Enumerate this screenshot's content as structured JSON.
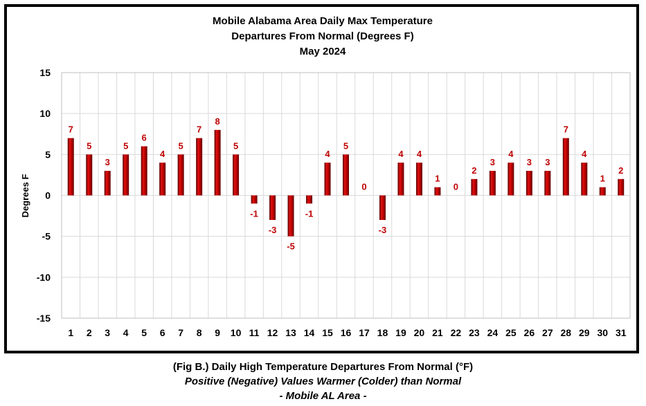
{
  "chart_data": {
    "type": "bar",
    "title": [
      "Mobile Alabama Area Daily Max Temperature",
      "Departures From Normal (Degrees F)",
      "May 2024"
    ],
    "xlabel": "",
    "ylabel": "Degrees F",
    "ylim": [
      -15,
      15
    ],
    "yticks": [
      15,
      10,
      5,
      0,
      -5,
      -10,
      -15
    ],
    "categories": [
      "1",
      "2",
      "3",
      "4",
      "5",
      "6",
      "7",
      "8",
      "9",
      "10",
      "11",
      "12",
      "13",
      "14",
      "15",
      "16",
      "17",
      "18",
      "19",
      "20",
      "21",
      "22",
      "23",
      "24",
      "25",
      "26",
      "27",
      "28",
      "29",
      "30",
      "31"
    ],
    "values": [
      7,
      5,
      3,
      5,
      6,
      4,
      5,
      7,
      8,
      5,
      -1,
      -3,
      -5,
      -1,
      4,
      5,
      0,
      -3,
      4,
      4,
      1,
      0,
      2,
      3,
      4,
      3,
      3,
      7,
      4,
      1,
      2
    ],
    "grid": true,
    "legend": "none",
    "bar_color": "#c00000",
    "label_color": "#c00000"
  },
  "caption": {
    "line1": "(Fig B.) Daily High Temperature Departures From Normal (°F)",
    "line2": "Positive (Negative) Values Warmer (Colder) than Normal",
    "line3": "- Mobile AL Area -"
  }
}
